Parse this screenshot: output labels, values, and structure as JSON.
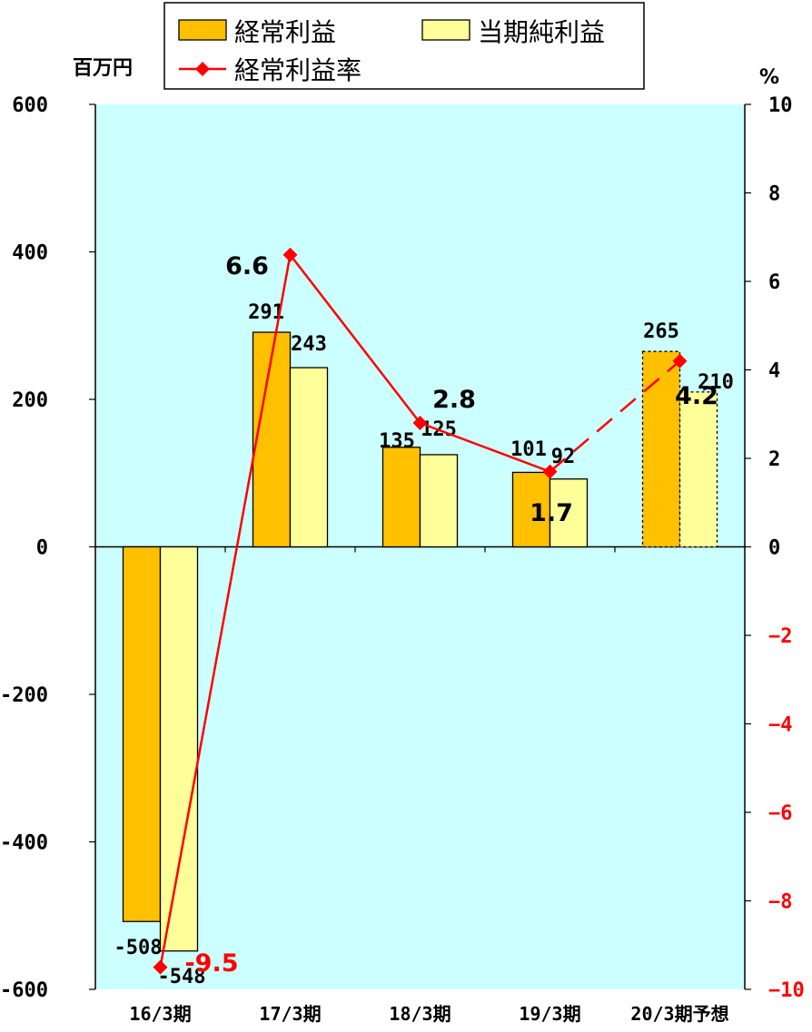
{
  "chart_data": {
    "type": "bar",
    "categories": [
      "16/3期",
      "17/3期",
      "18/3期",
      "19/3期",
      "20/3期予想"
    ],
    "forecast_index": 4,
    "series": [
      {
        "name": "経常利益",
        "axis": "left",
        "values": [
          -508,
          291,
          135,
          101,
          265
        ],
        "labels": [
          "-508",
          "291",
          "135",
          "101",
          "265"
        ],
        "color": "#FFC000"
      },
      {
        "name": "当期純利益",
        "axis": "left",
        "values": [
          -548,
          243,
          125,
          92,
          210
        ],
        "labels": [
          "-548",
          "243",
          "125",
          "92",
          "210"
        ],
        "color": "#FFFF99"
      },
      {
        "name": "経常利益率",
        "type": "line",
        "axis": "right",
        "values": [
          -9.5,
          6.6,
          2.8,
          1.7,
          4.2
        ],
        "labels": [
          "-9.5",
          "6.6",
          "2.8",
          "1.7",
          "4.2"
        ],
        "color": "#FF0000"
      }
    ],
    "left_axis": {
      "unit": "百万円",
      "ylim": [
        -600,
        600
      ],
      "ticks": [
        600,
        400,
        200,
        0,
        -200,
        -400,
        -600
      ],
      "tick_labels": [
        "600",
        "400",
        "200",
        "0",
        "-200",
        "-400",
        "-600"
      ]
    },
    "right_axis": {
      "unit": "%",
      "ylim": [
        -10,
        10
      ],
      "ticks": [
        10,
        8,
        6,
        4,
        2,
        0,
        -2,
        -4,
        -6,
        -8,
        -10
      ],
      "tick_labels": [
        "10",
        "8",
        "6",
        "4",
        "2",
        "0",
        "−2",
        "−4",
        "−6",
        "−8",
        "−10"
      ],
      "negative_color": "#FF0000"
    },
    "plot_background": "#CCFFFF",
    "legend_position": "top",
    "grid": false
  }
}
